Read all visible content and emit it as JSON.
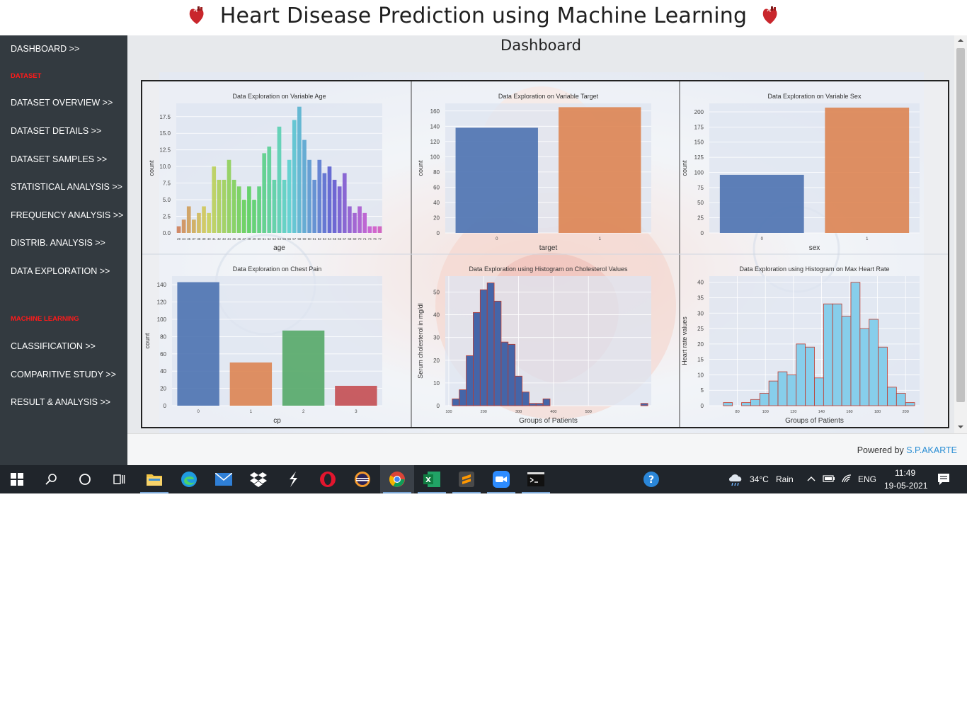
{
  "header": {
    "title": "Heart Disease Prediction using Machine Learning"
  },
  "sidebar": {
    "items": [
      {
        "label": "DASHBOARD >>",
        "type": "link"
      },
      {
        "label": "DATASET",
        "type": "section"
      },
      {
        "label": "DATASET OVERVIEW >>",
        "type": "link"
      },
      {
        "label": "DATASET DETAILS >>",
        "type": "link"
      },
      {
        "label": "DATASET SAMPLES >>",
        "type": "link"
      },
      {
        "label": "STATISTICAL ANALYSIS >>",
        "type": "link"
      },
      {
        "label": "FREQUENCY ANALYSIS >>",
        "type": "link"
      },
      {
        "label": "DISTRIB. ANALYSIS >>",
        "type": "link"
      },
      {
        "label": "DATA EXPLORATION >>",
        "type": "link"
      },
      {
        "label": "MACHINE LEARNING",
        "type": "section"
      },
      {
        "label": "CLASSIFICATION >>",
        "type": "link"
      },
      {
        "label": "COMPARITIVE STUDY >>",
        "type": "link"
      },
      {
        "label": "RESULT & ANALYSIS >>",
        "type": "link"
      }
    ]
  },
  "main": {
    "page_title": "Dashboard"
  },
  "footer": {
    "powered_by": "Powered by",
    "author": "S.P.AKARTE"
  },
  "taskbar": {
    "weather_temp": "34°C",
    "weather_desc": "Rain",
    "language": "ENG",
    "time": "11:49",
    "date": "19-05-2021",
    "apps": [
      "start-icon",
      "search-icon",
      "cortana-icon",
      "task-view-icon",
      "file-explorer-icon",
      "edge-icon",
      "mail-icon",
      "dropbox-icon",
      "app-s-icon",
      "opera-icon",
      "eclipse-icon",
      "chrome-icon",
      "excel-icon",
      "sublime-text-icon",
      "zoom-icon",
      "terminal-icon"
    ]
  },
  "chart_data": [
    {
      "type": "bar",
      "title": "Data Exploration on Variable Age",
      "xlabel": "age",
      "ylabel": "count",
      "categories": [
        "29",
        "34",
        "35",
        "37",
        "38",
        "39",
        "40",
        "41",
        "42",
        "43",
        "44",
        "45",
        "46",
        "47",
        "48",
        "49",
        "50",
        "51",
        "52",
        "53",
        "54",
        "55",
        "56",
        "57",
        "58",
        "59",
        "60",
        "61",
        "62",
        "63",
        "64",
        "65",
        "66",
        "67",
        "68",
        "69",
        "70",
        "71",
        "74",
        "76",
        "77"
      ],
      "values": [
        1,
        2,
        4,
        2,
        3,
        4,
        3,
        10,
        8,
        8,
        11,
        8,
        7,
        5,
        7,
        5,
        7,
        12,
        13,
        8,
        16,
        8,
        11,
        17,
        19,
        14,
        11,
        8,
        11,
        9,
        10,
        8,
        7,
        9,
        4,
        3,
        4,
        3,
        1,
        1,
        1
      ],
      "yticks": [
        "0.0",
        "2.5",
        "5.0",
        "7.5",
        "10.0",
        "12.5",
        "15.0",
        "17.5"
      ],
      "ylim": [
        0,
        19.5
      ]
    },
    {
      "type": "bar",
      "title": "Data Exploration on Variable Target",
      "xlabel": "target",
      "ylabel": "count",
      "categories": [
        "0",
        "1"
      ],
      "values": [
        138,
        165
      ],
      "yticks": [
        "0",
        "20",
        "40",
        "60",
        "80",
        "100",
        "120",
        "140",
        "160"
      ],
      "ylim": [
        0,
        170
      ]
    },
    {
      "type": "bar",
      "title": "Data Exploration on Variable Sex",
      "xlabel": "sex",
      "ylabel": "count",
      "categories": [
        "0",
        "1"
      ],
      "values": [
        96,
        207
      ],
      "yticks": [
        "0",
        "25",
        "50",
        "75",
        "100",
        "125",
        "150",
        "175",
        "200"
      ],
      "ylim": [
        0,
        214
      ]
    },
    {
      "type": "bar",
      "title": "Data Exploration on Chest Pain",
      "xlabel": "cp",
      "ylabel": "count",
      "categories": [
        "0",
        "1",
        "2",
        "3"
      ],
      "values": [
        143,
        50,
        87,
        23
      ],
      "yticks": [
        "0",
        "20",
        "40",
        "60",
        "80",
        "100",
        "120",
        "140"
      ],
      "ylim": [
        0,
        150
      ]
    },
    {
      "type": "histogram",
      "title": "Data Exploration using Histogram on Cholesterol Values",
      "xlabel": "Groups of Patients",
      "ylabel": "Serum cholesterol in mg/dl",
      "bin_start": 110,
      "bin_width": 20,
      "values": [
        3,
        7,
        22,
        41,
        51,
        54,
        46,
        28,
        27,
        13,
        6,
        1,
        1,
        3,
        0,
        0,
        0,
        0,
        0,
        0,
        0,
        0,
        0,
        0,
        0,
        0,
        0,
        1
      ],
      "xticks": [
        "100",
        "200",
        "300",
        "400",
        "500"
      ],
      "yticks": [
        "0",
        "10",
        "20",
        "30",
        "40",
        "50"
      ],
      "ylim": [
        0,
        57
      ]
    },
    {
      "type": "histogram",
      "title": "Data Exploration using Histogram on Max Heart Rate",
      "xlabel": "Groups of Patients",
      "ylabel": "Heart rate values",
      "bin_start": 70,
      "bin_width": 6.5,
      "values": [
        1,
        0,
        1,
        2,
        4,
        8,
        11,
        10,
        20,
        19,
        9,
        33,
        33,
        29,
        40,
        25,
        28,
        19,
        6,
        4,
        1
      ],
      "xticks": [
        "80",
        "100",
        "120",
        "140",
        "160",
        "180",
        "200"
      ],
      "yticks": [
        "0",
        "5",
        "10",
        "15",
        "20",
        "25",
        "30",
        "35",
        "40"
      ],
      "ylim": [
        0,
        42
      ]
    }
  ]
}
